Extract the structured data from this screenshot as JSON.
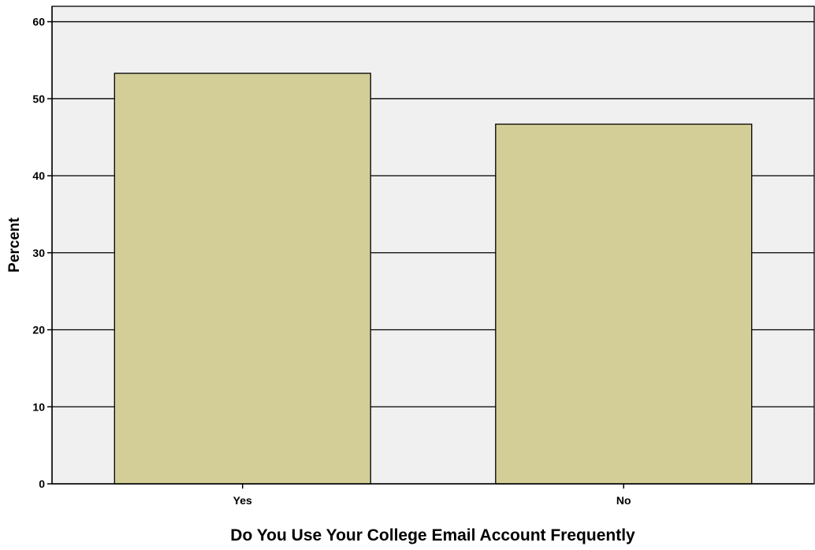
{
  "chart_data": {
    "type": "bar",
    "categories": [
      "Yes",
      "No"
    ],
    "values": [
      53.3,
      46.7
    ],
    "xlabel": "Do You Use Your College Email Account Frequently",
    "ylabel": "Percent",
    "ylim": [
      0,
      62
    ],
    "yticks": [
      "0",
      "10",
      "20",
      "30",
      "40",
      "50",
      "60"
    ],
    "grid": true,
    "legend": "none",
    "colors": {
      "plot_background": "#f0f0f0",
      "bar_fill": "#d3ce98",
      "bar_stroke": "#000000",
      "gridline": "#000000"
    }
  }
}
